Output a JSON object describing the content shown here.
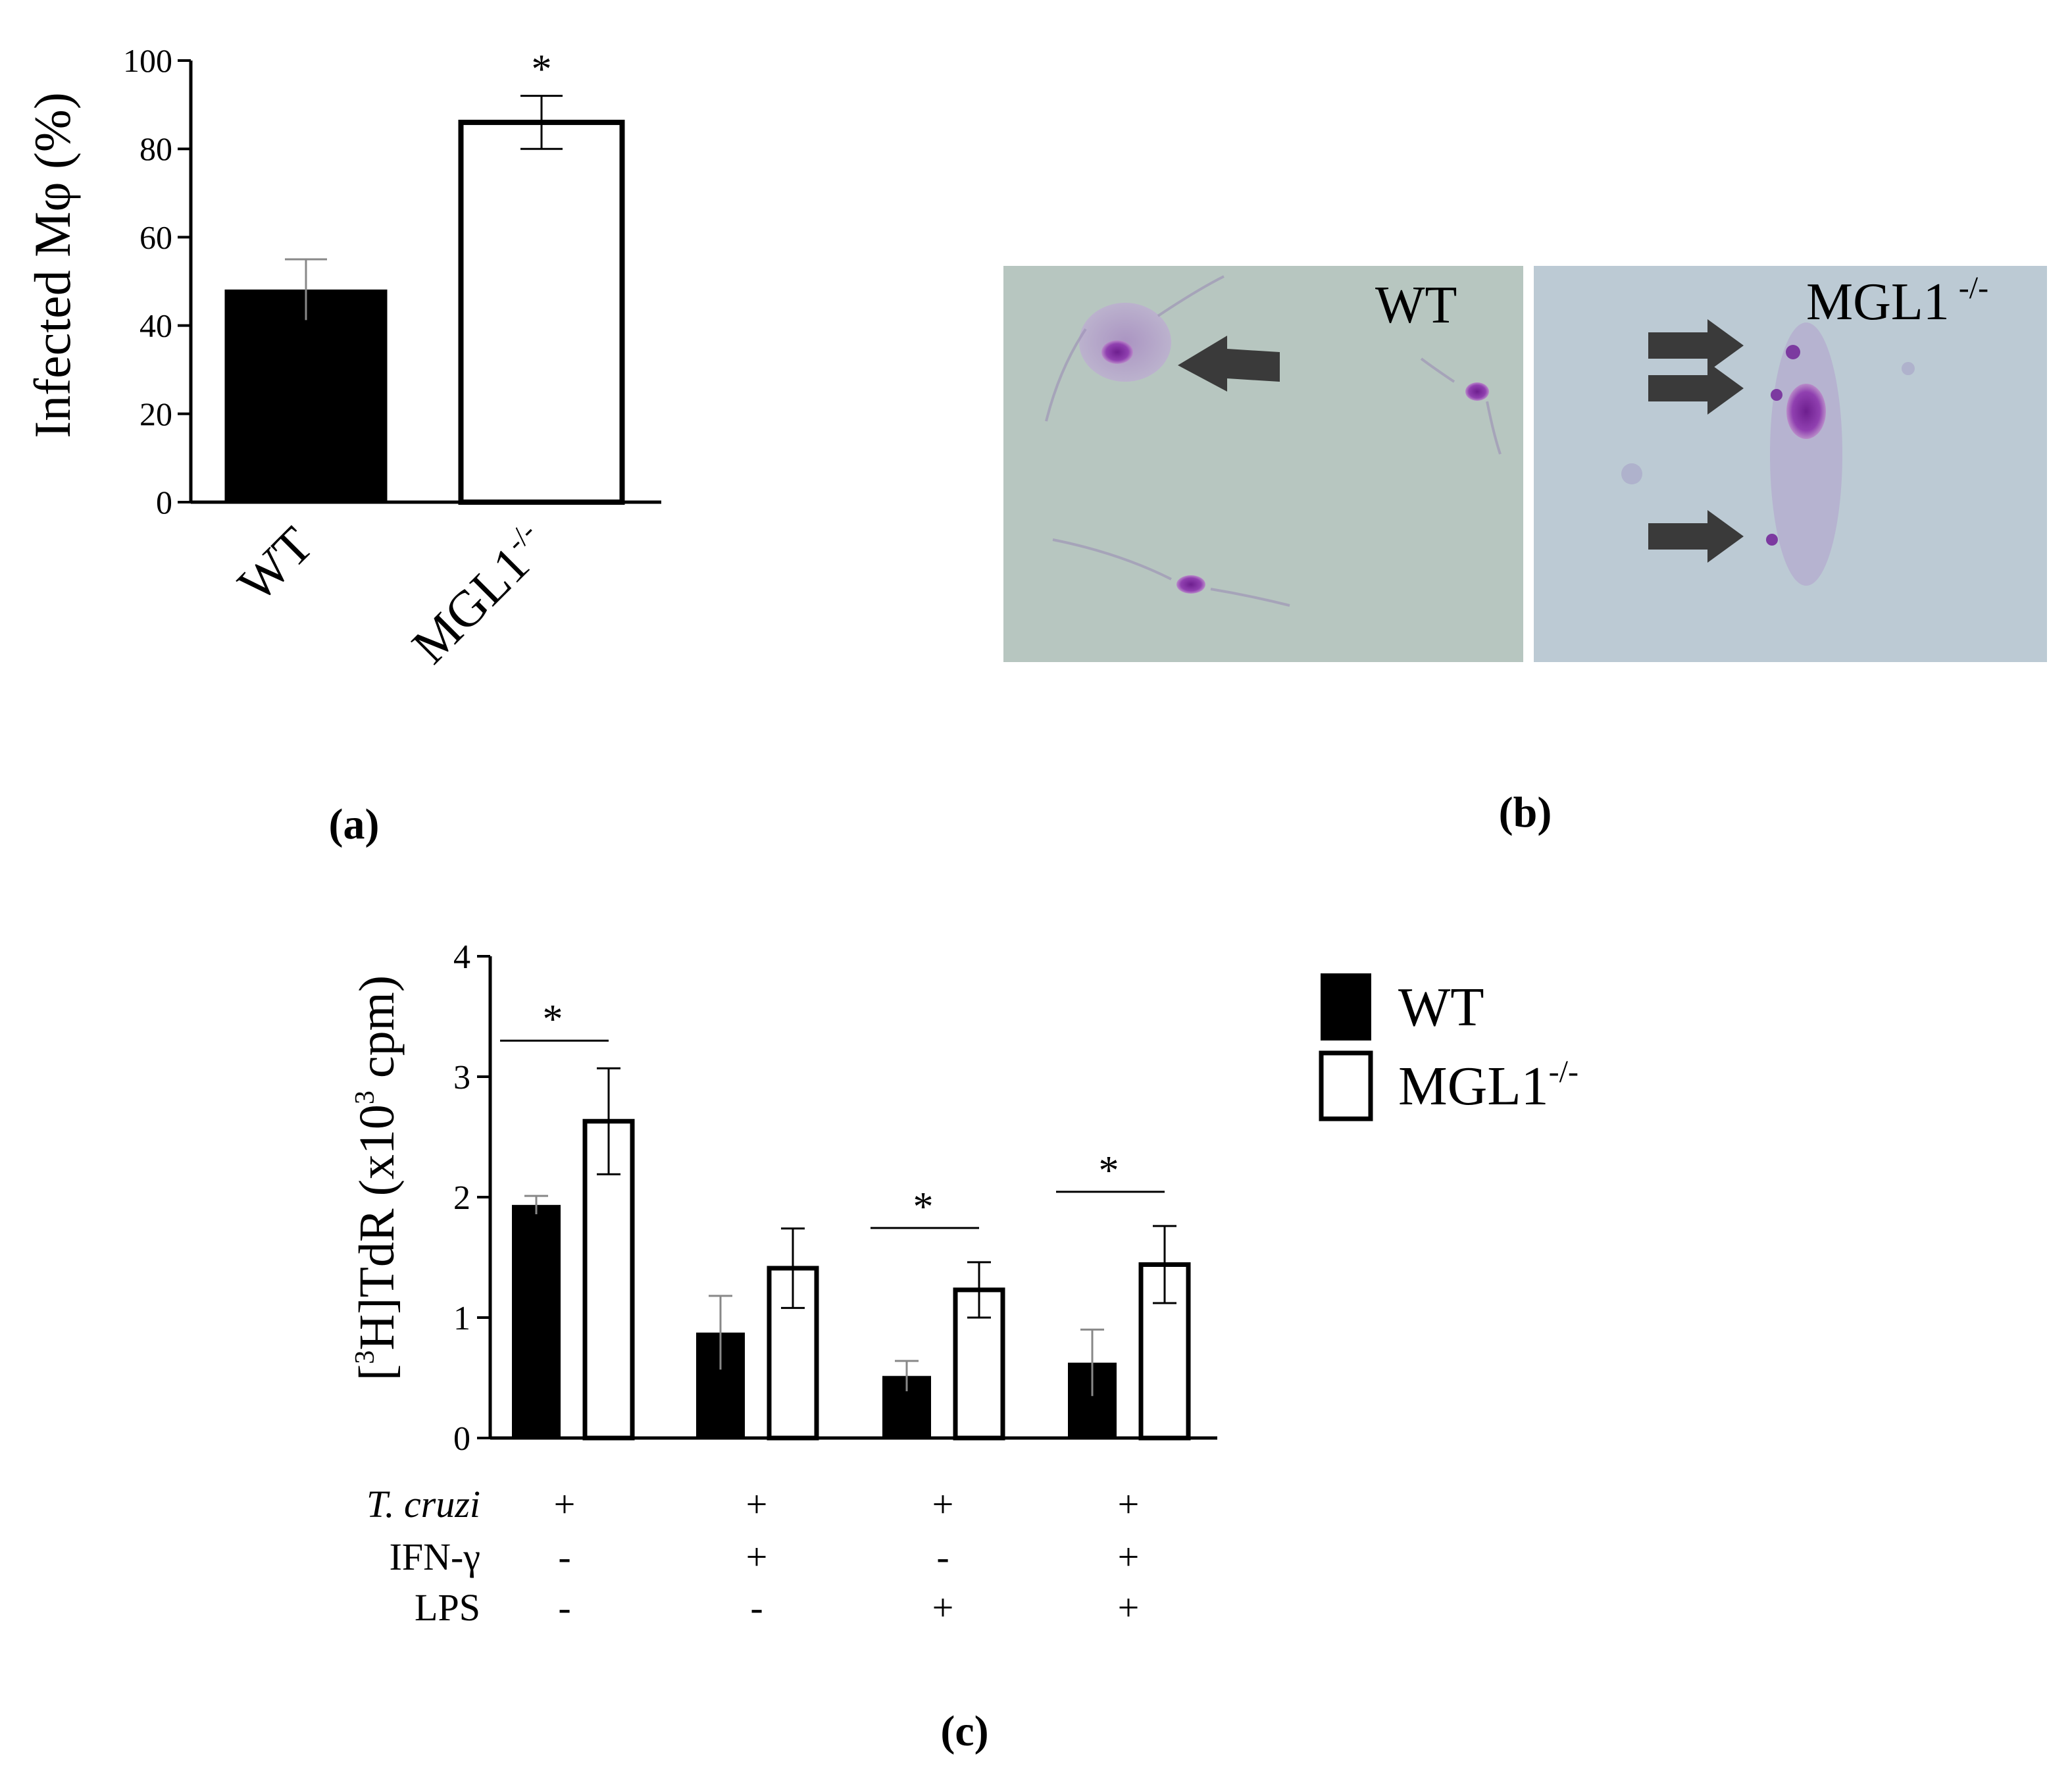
{
  "panels": {
    "a_label": "(a)",
    "b_label": "(b)",
    "c_label": "(c)"
  },
  "micrographs": {
    "left_label": "WT",
    "right_label": "MGL1",
    "right_label_sup": "-/-",
    "left_bg": "#b7c6c0",
    "right_bg": "#bccad4",
    "arrow_color": "#3a3a3a",
    "stain_color": "#8a3fa8"
  },
  "chart_data": [
    {
      "type": "bar",
      "categories": [
        "WT",
        "MGL1-/-"
      ],
      "category_text": [
        {
          "base": "WT",
          "sup": ""
        },
        {
          "base": "MGL1",
          "sup": "-/-"
        }
      ],
      "values": [
        48,
        86
      ],
      "errors": [
        7,
        6
      ],
      "bar_fill": [
        "#000000",
        "#ffffff"
      ],
      "significance": [
        "",
        "*"
      ],
      "ylabel": "Infected Mφ (%)",
      "ylim": [
        0,
        100
      ],
      "yticks": [
        0,
        20,
        40,
        60,
        80,
        100
      ],
      "grid": false
    },
    {
      "type": "bar",
      "groups": 4,
      "series": [
        {
          "name": "WT",
          "values": [
            1.93,
            0.87,
            0.51,
            0.62
          ],
          "errors": [
            0.08,
            0.31,
            0.13,
            0.28
          ],
          "fill": "#000000"
        },
        {
          "name": "MGL1-/-",
          "values": [
            2.63,
            1.41,
            1.23,
            1.44
          ],
          "errors": [
            0.44,
            0.33,
            0.23,
            0.32
          ],
          "fill": "#ffffff"
        }
      ],
      "legend_text": [
        {
          "base": "WT",
          "sup": ""
        },
        {
          "base": "MGL1",
          "sup": "-/-"
        }
      ],
      "legend_position": "right",
      "significance": [
        "*",
        "",
        "*",
        "*"
      ],
      "ylabel_parts": {
        "open": "[",
        "sup3": "3",
        "mid": "H]TdR (x10",
        "sup": "3",
        "close": " cpm)"
      },
      "ylim": [
        0,
        4
      ],
      "yticks": [
        0,
        1,
        2,
        3,
        4
      ],
      "grid": false,
      "conditions": [
        {
          "label": "T. cruzi",
          "values": [
            "+",
            "+",
            "+",
            "+"
          ]
        },
        {
          "label": "IFN-γ",
          "values": [
            "-",
            "+",
            "-",
            "+"
          ]
        },
        {
          "label": "LPS",
          "values": [
            "-",
            "-",
            "+",
            "+"
          ]
        }
      ]
    }
  ]
}
